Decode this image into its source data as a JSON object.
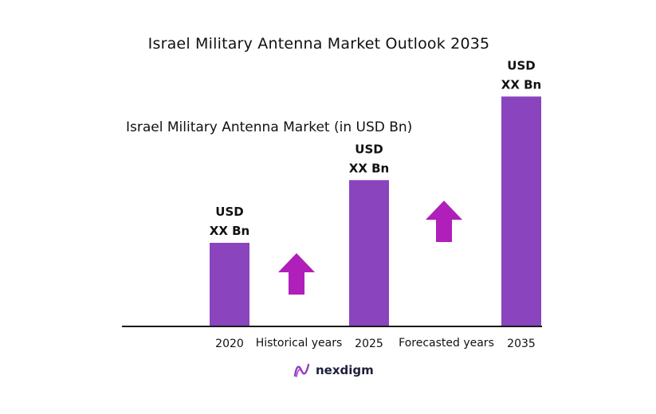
{
  "chart_data": {
    "type": "bar",
    "title": "Israel Military Antenna Market Outlook 2035",
    "subtitle": "Israel Military Antenna Market (in USD Bn)",
    "categories": [
      "2020",
      "2025",
      "2035"
    ],
    "values": [
      1.0,
      1.75,
      2.75
    ],
    "value_labels": [
      [
        "USD",
        "XX Bn"
      ],
      [
        "USD",
        "XX Bn"
      ],
      [
        "USD",
        "XX Bn"
      ]
    ],
    "ylim": [
      0,
      3
    ],
    "grid": false,
    "annotations": [
      {
        "text": "Historical years",
        "between": [
          "2020",
          "2025"
        ]
      },
      {
        "text": "Forecasted years",
        "between": [
          "2025",
          "2035"
        ]
      }
    ],
    "colors": {
      "bar": "#8a44bd",
      "arrow": "#b01fb9",
      "axis": "#1a1a1a"
    }
  },
  "brand": {
    "name": "nexdigm",
    "icon": "nexdigm-logo-icon"
  }
}
